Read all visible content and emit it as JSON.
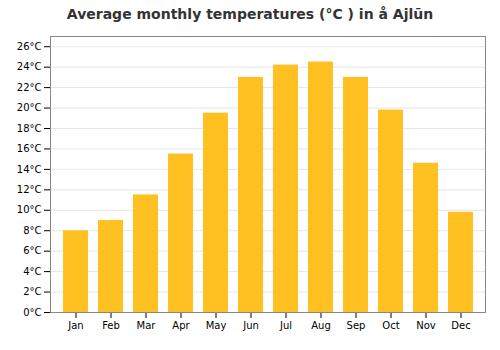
{
  "chart_data": {
    "type": "bar",
    "title": "Average monthly temperatures (°C ) in å  Ajlūn",
    "categories": [
      "Jan",
      "Feb",
      "Mar",
      "Apr",
      "May",
      "Jun",
      "Jul",
      "Aug",
      "Sep",
      "Oct",
      "Nov",
      "Dec"
    ],
    "values": [
      8.0,
      9.0,
      11.5,
      15.5,
      19.5,
      23.0,
      24.2,
      24.5,
      23.0,
      19.8,
      14.6,
      9.8
    ],
    "color": "#FFC022",
    "ylim": [
      0,
      27
    ],
    "yticks": [
      {
        "value": 0,
        "label": "0°C"
      },
      {
        "value": 2,
        "label": "2°C"
      },
      {
        "value": 4,
        "label": "4°C"
      },
      {
        "value": 6,
        "label": "6°C"
      },
      {
        "value": 8,
        "label": "8°C"
      },
      {
        "value": 10,
        "label": "10°C"
      },
      {
        "value": 12,
        "label": "12°C"
      },
      {
        "value": 14,
        "label": "14°C"
      },
      {
        "value": 16,
        "label": "16°C"
      },
      {
        "value": 18,
        "label": "18°C"
      },
      {
        "value": 20,
        "label": "20°C"
      },
      {
        "value": 22,
        "label": "22°C"
      },
      {
        "value": 24,
        "label": "24°C"
      },
      {
        "value": 26,
        "label": "26°C"
      }
    ],
    "grid": true
  }
}
